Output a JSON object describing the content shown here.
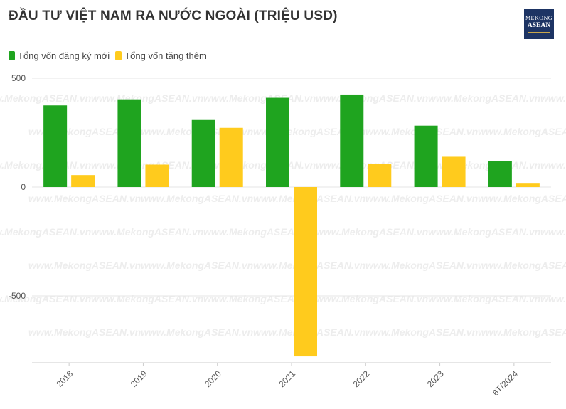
{
  "title": "ĐẦU TƯ VIỆT NAM RA NƯỚC NGOÀI (TRIỆU USD)",
  "logo": {
    "line1": "MEKONG",
    "line2": "ASEAN"
  },
  "watermark": "www.MekongASEAN.vn",
  "colors": {
    "green": "#1fa41f",
    "yellow": "#ffcb1d",
    "grid": "#e6e6e6",
    "axis": "#cccccc",
    "text": "#555555"
  },
  "chart_data": {
    "type": "bar",
    "categories": [
      "2018",
      "2019",
      "2020",
      "2021",
      "2022",
      "2023",
      "6T/2024"
    ],
    "series": [
      {
        "name": "Tổng vốn đăng ký mới",
        "color": "#1fa41f",
        "values": [
          375,
          403,
          308,
          410,
          425,
          282,
          118
        ]
      },
      {
        "name": "Tổng vốn tăng thêm",
        "color": "#ffcb1d",
        "values": [
          55,
          103,
          272,
          -778,
          106,
          139,
          19
        ]
      }
    ],
    "ylim": [
      -800,
      500
    ],
    "yticks": [
      500,
      0,
      -500
    ],
    "legend_position": "top-left",
    "grid": true
  }
}
